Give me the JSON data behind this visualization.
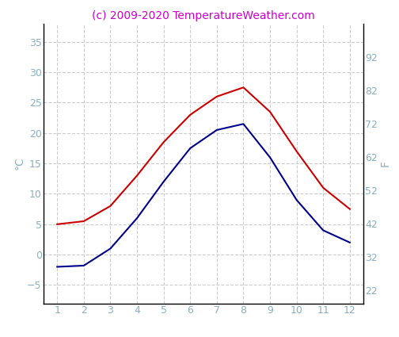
{
  "months": [
    1,
    2,
    3,
    4,
    5,
    6,
    7,
    8,
    9,
    10,
    11,
    12
  ],
  "red_line": [
    5.0,
    5.5,
    8.0,
    13.0,
    18.5,
    23.0,
    26.0,
    27.5,
    23.5,
    17.0,
    11.0,
    7.5
  ],
  "blue_line": [
    -2.0,
    -1.8,
    1.0,
    6.0,
    12.0,
    17.5,
    20.5,
    21.5,
    16.0,
    9.0,
    4.0,
    2.0
  ],
  "red_color": "#cc0000",
  "blue_color": "#00008b",
  "title": "(c) 2009-2020 TemperatureWeather.com",
  "title_color": "#cc00cc",
  "ylabel_left": "°C",
  "ylabel_right": "F",
  "tick_color": "#8ab0c0",
  "ylabel_color": "#8ab0c0",
  "ylim_left": [
    -8,
    38
  ],
  "ylim_right": [
    18,
    102
  ],
  "yticks_left": [
    -5,
    0,
    5,
    10,
    15,
    20,
    25,
    30,
    35
  ],
  "yticks_right": [
    22,
    32,
    42,
    52,
    62,
    72,
    82,
    92
  ],
  "grid_color": "#cccccc",
  "spine_color": "#000000",
  "background_color": "#ffffff",
  "title_fontsize": 10,
  "axis_label_fontsize": 10,
  "tick_fontsize": 9
}
